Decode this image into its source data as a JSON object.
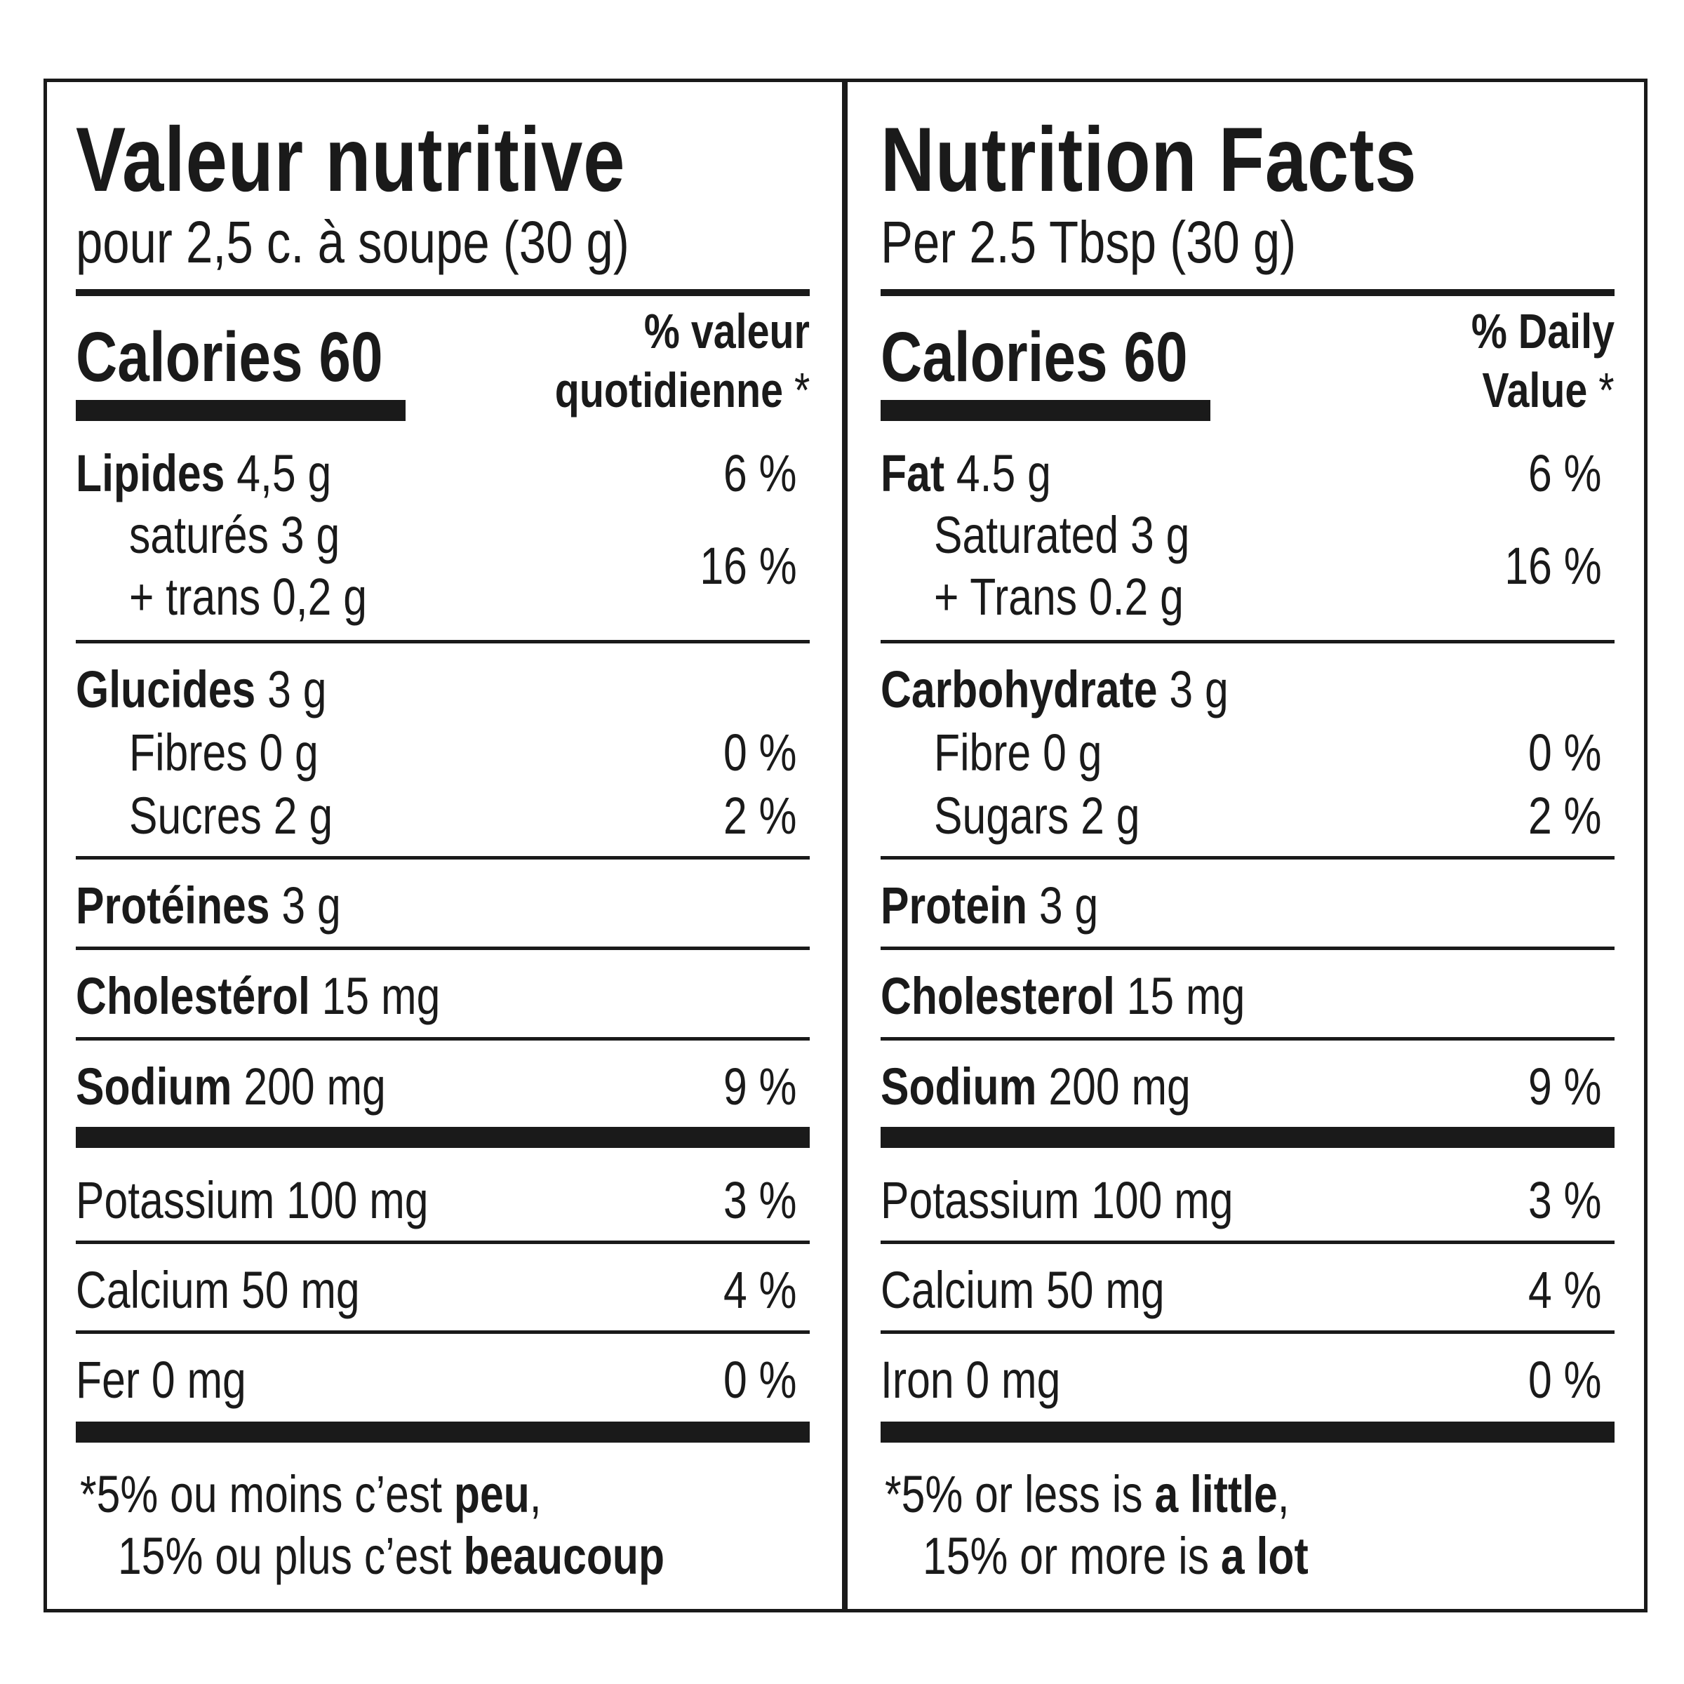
{
  "fr": {
    "title": "Valeur nutritive",
    "serving": "pour 2,5 c. à soupe (30 g)",
    "calories": "Calories 60",
    "dv_line1": "% valeur",
    "dv_line2": "quotidienne",
    "star": "*",
    "fat_label": "Lipides",
    "fat_amount": "4,5 g",
    "fat_pct": "6 %",
    "sat": "saturés 3 g",
    "trans": "+ trans 0,2 g",
    "sat_trans_pct": "16 %",
    "carb_label": "Glucides",
    "carb_amount": "3 g",
    "fibre": "Fibres 0 g",
    "fibre_pct": "0 %",
    "sugars": "Sucres 2 g",
    "sugars_pct": "2 %",
    "protein_label": "Protéines",
    "protein_amount": "3 g",
    "chol_label": "Cholestérol",
    "chol_amount": "15 mg",
    "sodium_label": "Sodium",
    "sodium_amount": "200 mg",
    "sodium_pct": "9 %",
    "potassium": "Potassium 100 mg",
    "potassium_pct": "3 %",
    "calcium": "Calcium 50 mg",
    "calcium_pct": "4 %",
    "iron": "Fer 0 mg",
    "iron_pct": "0 %",
    "foot1_a": "5% ou moins c’est ",
    "foot1_b": "peu",
    "foot1_c": ",",
    "foot2_a": "15% ou plus c’est ",
    "foot2_b": "beaucoup"
  },
  "en": {
    "title": "Nutrition Facts",
    "serving": "Per 2.5 Tbsp (30 g)",
    "calories": "Calories 60",
    "dv_line1": "% Daily",
    "dv_line2": "Value",
    "star": "*",
    "fat_label": "Fat",
    "fat_amount": "4.5 g",
    "fat_pct": "6 %",
    "sat": "Saturated 3 g",
    "trans": "+ Trans 0.2 g",
    "sat_trans_pct": "16 %",
    "carb_label": "Carbohydrate",
    "carb_amount": "3 g",
    "fibre": "Fibre 0 g",
    "fibre_pct": "0 %",
    "sugars": "Sugars 2 g",
    "sugars_pct": "2 %",
    "protein_label": "Protein",
    "protein_amount": "3 g",
    "chol_label": "Cholesterol",
    "chol_amount": "15 mg",
    "sodium_label": "Sodium",
    "sodium_amount": "200 mg",
    "sodium_pct": "9 %",
    "potassium": "Potassium 100 mg",
    "potassium_pct": "3 %",
    "calcium": "Calcium 50 mg",
    "calcium_pct": "4 %",
    "iron": "Iron 0 mg",
    "iron_pct": "0 %",
    "foot1_a": "5% or less is ",
    "foot1_b": "a little",
    "foot1_c": ",",
    "foot2_a": "15% or more is ",
    "foot2_b": "a lot"
  }
}
